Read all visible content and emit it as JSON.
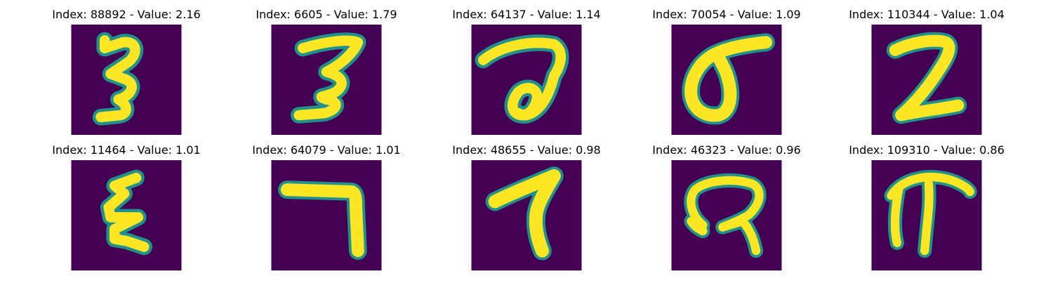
{
  "colors": {
    "background": "#440154",
    "low": "#3b528b",
    "mid": "#21918c",
    "high_mid": "#5ec962",
    "stroke": "#fde725"
  },
  "colormap": "viridis",
  "panels": [
    {
      "title": "Index: 88892 - Value: 2.16",
      "image": "digit-3-glyph"
    },
    {
      "title": "Index: 6605 - Value: 1.79",
      "image": "digit-3-glyph"
    },
    {
      "title": "Index: 64137 - Value: 1.14",
      "image": "loop-a-glyph"
    },
    {
      "title": "Index: 70054 - Value: 1.09",
      "image": "sigma-glyph"
    },
    {
      "title": "Index: 110344 - Value: 1.04",
      "image": "digit-2-glyph"
    },
    {
      "title": "Index: 11464 - Value: 1.01",
      "image": "zigzag-glyph"
    },
    {
      "title": "Index: 64079 - Value: 1.01",
      "image": "digit-7-glyph"
    },
    {
      "title": "Index: 48655 - Value: 0.98",
      "image": "digit-7-glyph"
    },
    {
      "title": "Index: 46323 - Value: 0.96",
      "image": "loop-r-glyph"
    },
    {
      "title": "Index: 109310 - Value: 0.86",
      "image": "pi-glyph"
    }
  ]
}
